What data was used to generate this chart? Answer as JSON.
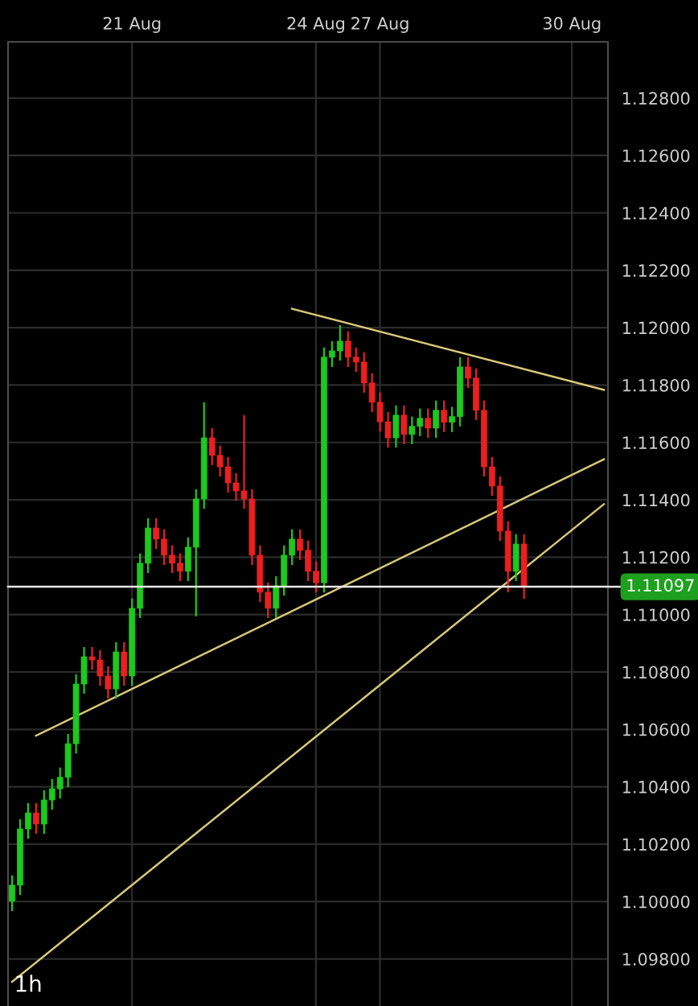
{
  "chart_data": {
    "type": "candlestick",
    "categories": [
      null,
      null,
      null,
      null,
      null,
      null,
      null,
      null,
      null,
      null,
      null,
      null,
      null,
      null,
      null,
      "21 Aug",
      null,
      null,
      null,
      null,
      null,
      null,
      null,
      null,
      null,
      null,
      null,
      null,
      null,
      null,
      null,
      null,
      null,
      null,
      null,
      null,
      null,
      null,
      "24 Aug",
      null,
      null,
      null,
      null,
      null,
      null,
      null,
      "27 Aug",
      null,
      null,
      null,
      null,
      null,
      null,
      null,
      null,
      null,
      null,
      null,
      null,
      null,
      null,
      null,
      null,
      null,
      null,
      null,
      null,
      null,
      null,
      null,
      "30 Aug",
      null,
      null,
      null,
      null
    ],
    "ohlc": [
      [
        1.10001,
        1.10091,
        1.09967,
        1.10057
      ],
      [
        1.10057,
        1.10287,
        1.10023,
        1.10253
      ],
      [
        1.10253,
        1.10343,
        1.10219,
        1.10309
      ],
      [
        1.10309,
        1.10343,
        1.10236,
        1.1027
      ],
      [
        1.1027,
        1.10388,
        1.10236,
        1.10354
      ],
      [
        1.10354,
        1.10427,
        1.1032,
        1.10393
      ],
      [
        1.10393,
        1.10467,
        1.10359,
        1.10433
      ],
      [
        1.10433,
        1.10584,
        1.10399,
        1.1055
      ],
      [
        1.1055,
        1.10792,
        1.10516,
        1.10758
      ],
      [
        1.10758,
        1.10887,
        1.10724,
        1.10853
      ],
      [
        1.10853,
        1.10887,
        1.10808,
        1.10842
      ],
      [
        1.10842,
        1.10876,
        1.10752,
        1.10786
      ],
      [
        1.10786,
        1.1082,
        1.10707,
        1.10741
      ],
      [
        1.10741,
        1.10904,
        1.10707,
        1.1087
      ],
      [
        1.1087,
        1.10904,
        1.10752,
        1.10786
      ],
      [
        1.10786,
        1.11056,
        1.10752,
        1.11022
      ],
      [
        1.11022,
        1.11213,
        1.10988,
        1.11179
      ],
      [
        1.11179,
        1.11336,
        1.11145,
        1.11302
      ],
      [
        1.11302,
        1.11336,
        1.11229,
        1.11263
      ],
      [
        1.11263,
        1.11297,
        1.11173,
        1.11207
      ],
      [
        1.11207,
        1.11241,
        1.11145,
        1.11179
      ],
      [
        1.11179,
        1.11213,
        1.11117,
        1.11151
      ],
      [
        1.11151,
        1.11269,
        1.11117,
        1.11235
      ],
      [
        1.11235,
        1.11437,
        1.10994,
        1.11403
      ],
      [
        1.11403,
        1.1174,
        1.11369,
        1.11616
      ],
      [
        1.11616,
        1.1165,
        1.11521,
        1.11555
      ],
      [
        1.11555,
        1.11589,
        1.11481,
        1.11515
      ],
      [
        1.11515,
        1.11549,
        1.11425,
        1.11459
      ],
      [
        1.11459,
        1.11493,
        1.11397,
        1.11431
      ],
      [
        1.11431,
        1.11695,
        1.11369,
        1.11403
      ],
      [
        1.11403,
        1.11437,
        1.11173,
        1.11207
      ],
      [
        1.11207,
        1.11241,
        1.11044,
        1.11078
      ],
      [
        1.11078,
        1.11112,
        1.10988,
        1.11022
      ],
      [
        1.11022,
        1.11134,
        1.10988,
        1.111
      ],
      [
        1.111,
        1.11241,
        1.11066,
        1.11207
      ],
      [
        1.11207,
        1.11297,
        1.11173,
        1.11263
      ],
      [
        1.11263,
        1.11297,
        1.1119,
        1.11224
      ],
      [
        1.11224,
        1.11258,
        1.11117,
        1.11151
      ],
      [
        1.11151,
        1.11185,
        1.11077,
        1.11111
      ],
      [
        1.11111,
        1.11931,
        1.11077,
        1.11897
      ],
      [
        1.11897,
        1.11953,
        1.11863,
        1.11919
      ],
      [
        1.11919,
        1.12009,
        1.11885,
        1.11953
      ],
      [
        1.11953,
        1.11987,
        1.11863,
        1.11897
      ],
      [
        1.11897,
        1.11931,
        1.11846,
        1.1188
      ],
      [
        1.1188,
        1.11914,
        1.11773,
        1.11807
      ],
      [
        1.11807,
        1.11841,
        1.11706,
        1.1174
      ],
      [
        1.1174,
        1.11774,
        1.11638,
        1.11672
      ],
      [
        1.11672,
        1.11706,
        1.11582,
        1.11616
      ],
      [
        1.11616,
        1.11729,
        1.11582,
        1.11695
      ],
      [
        1.11695,
        1.11729,
        1.11594,
        1.11628
      ],
      [
        1.11628,
        1.1169,
        1.11594,
        1.11656
      ],
      [
        1.11656,
        1.11718,
        1.11622,
        1.11684
      ],
      [
        1.11684,
        1.11718,
        1.11616,
        1.1165
      ],
      [
        1.1165,
        1.11746,
        1.11616,
        1.11712
      ],
      [
        1.11712,
        1.11746,
        1.11636,
        1.1167
      ],
      [
        1.1167,
        1.11724,
        1.11636,
        1.1169
      ],
      [
        1.1169,
        1.11897,
        1.11656,
        1.11863
      ],
      [
        1.11863,
        1.11897,
        1.1179,
        1.11824
      ],
      [
        1.11824,
        1.11858,
        1.11678,
        1.11712
      ],
      [
        1.11712,
        1.11746,
        1.11481,
        1.11515
      ],
      [
        1.11515,
        1.11549,
        1.11414,
        1.11448
      ],
      [
        1.11448,
        1.11482,
        1.11257,
        1.11291
      ],
      [
        1.11291,
        1.11325,
        1.11078,
        1.11151
      ],
      [
        1.11151,
        1.1128,
        1.11117,
        1.11246
      ],
      [
        1.11246,
        1.1128,
        1.11055,
        1.11097
      ],
      null,
      null,
      null,
      null,
      null,
      null,
      null,
      null,
      null,
      null
    ],
    "series": [
      {
        "type": "line",
        "color": "#d8c878",
        "values": [
          null,
          null,
          null,
          null,
          null,
          null,
          null,
          null,
          null,
          null,
          null,
          null,
          null,
          null,
          null,
          null,
          null,
          null,
          null,
          null,
          null,
          null,
          null,
          null,
          null,
          null,
          null,
          null,
          null,
          null,
          null,
          null,
          null,
          null,
          null,
          1.12066,
          null,
          null,
          null,
          null,
          null,
          null,
          null,
          null,
          null,
          null,
          null,
          null,
          null,
          null,
          null,
          null,
          null,
          null,
          null,
          null,
          null,
          null,
          null,
          null,
          null,
          null,
          null,
          null,
          null,
          null,
          null,
          null,
          null,
          null,
          null,
          null,
          null,
          null,
          1.11783
        ]
      },
      {
        "type": "line",
        "color": "#d8c878",
        "values": [
          null,
          null,
          null,
          1.10578,
          null,
          null,
          null,
          null,
          null,
          null,
          null,
          null,
          null,
          null,
          null,
          null,
          null,
          null,
          null,
          null,
          null,
          null,
          null,
          null,
          null,
          null,
          null,
          null,
          null,
          null,
          null,
          null,
          null,
          null,
          null,
          null,
          null,
          null,
          null,
          null,
          null,
          null,
          null,
          null,
          null,
          null,
          null,
          null,
          null,
          null,
          null,
          null,
          null,
          null,
          null,
          null,
          null,
          null,
          null,
          null,
          null,
          null,
          null,
          null,
          null,
          null,
          null,
          null,
          null,
          null,
          null,
          null,
          null,
          null,
          1.11541
        ]
      },
      {
        "type": "line",
        "color": "#d8c878",
        "values": [
          1.0972,
          null,
          null,
          null,
          null,
          null,
          null,
          null,
          null,
          null,
          null,
          null,
          null,
          null,
          null,
          null,
          null,
          null,
          null,
          null,
          null,
          null,
          null,
          null,
          null,
          null,
          null,
          null,
          null,
          null,
          null,
          null,
          null,
          null,
          null,
          null,
          null,
          null,
          null,
          null,
          null,
          null,
          null,
          null,
          null,
          null,
          null,
          null,
          null,
          null,
          null,
          null,
          null,
          null,
          null,
          null,
          null,
          null,
          null,
          null,
          null,
          null,
          null,
          null,
          null,
          null,
          null,
          null,
          null,
          null,
          null,
          null,
          null,
          null,
          1.11385
        ]
      }
    ],
    "ref_lines": [
      {
        "axis": "y",
        "value": 1.11097,
        "label": "1.11097",
        "color": "#e8e8e8"
      }
    ],
    "ylim": [
      1.09636,
      1.12996
    ],
    "yticks": [
      {
        "value": 1.098,
        "label": "1.09800"
      },
      {
        "value": 1.1,
        "label": "1.10000"
      },
      {
        "value": 1.102,
        "label": "1.10200"
      },
      {
        "value": 1.104,
        "label": "1.10400"
      },
      {
        "value": 1.106,
        "label": "1.10600"
      },
      {
        "value": 1.108,
        "label": "1.10800"
      },
      {
        "value": 1.11,
        "label": "1.11000"
      },
      {
        "value": 1.112,
        "label": "1.11200"
      },
      {
        "value": 1.114,
        "label": "1.11400"
      },
      {
        "value": 1.116,
        "label": "1.11600"
      },
      {
        "value": 1.118,
        "label": "1.11800"
      },
      {
        "value": 1.12,
        "label": "1.12000"
      },
      {
        "value": 1.122,
        "label": "1.12200"
      },
      {
        "value": 1.124,
        "label": "1.12400"
      },
      {
        "value": 1.126,
        "label": "1.12600"
      },
      {
        "value": 1.128,
        "label": "1.12800"
      }
    ],
    "grid": true,
    "annotations": [
      "1h"
    ]
  }
}
